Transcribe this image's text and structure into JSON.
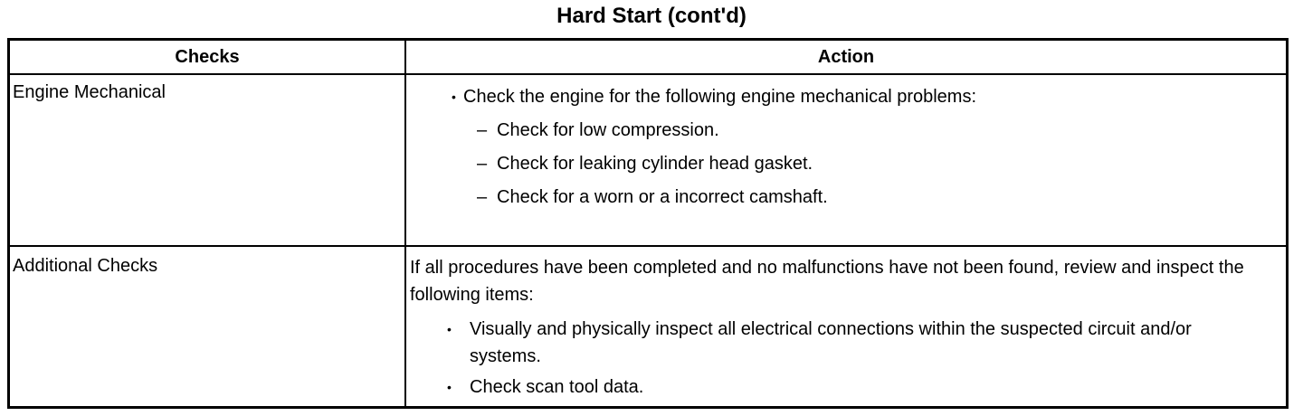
{
  "title": "Hard Start (cont'd)",
  "table": {
    "headers": [
      "Checks",
      "Action"
    ],
    "rows": [
      {
        "check": "Engine Mechanical",
        "bullet": "Check the engine for the following engine mechanical problems:",
        "subitems": [
          "Check for low compression.",
          "Check for leaking cylinder head gasket.",
          "Check for a worn or a incorrect camshaft."
        ]
      },
      {
        "check": "Additional Checks",
        "intro": "If all procedures have been completed and no malfunctions have not been found, review and inspect the following items:",
        "bullets": [
          "Visually and physically inspect all electrical connections within the suspected circuit and/or systems.",
          "Check scan tool data."
        ]
      }
    ]
  }
}
